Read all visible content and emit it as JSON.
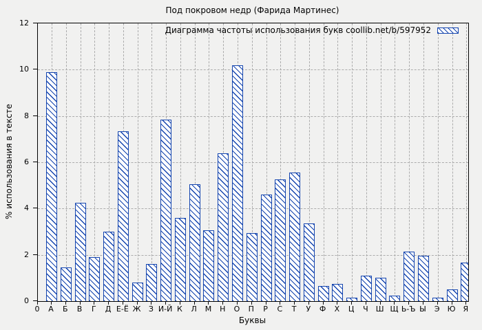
{
  "figure": {
    "background_color": "#f1f1f0",
    "accent_color": "#1243ae",
    "grid_color": "#ababab",
    "axis_color": "#000000",
    "bar_fill_color": "#ffffff",
    "hatch_style": "diagonal-backslash"
  },
  "chart_data": {
    "type": "bar",
    "title": "Под покровом недр (Фарида Мартинес)",
    "legend": "Диаграмма частоты использования букв coollib.net/b/597952",
    "legend_position": "top-right-inside",
    "xlabel": "Буквы",
    "ylabel": "% использования в тексте",
    "origin_label": "0",
    "ylim": [
      0,
      12
    ],
    "yticks": [
      0,
      2,
      4,
      6,
      8,
      10,
      12
    ],
    "grid": true,
    "categories": [
      "А",
      "Б",
      "В",
      "Г",
      "Д",
      "Е-Ё",
      "Ж",
      "З",
      "И-Й",
      "К",
      "Л",
      "М",
      "Н",
      "О",
      "П",
      "Р",
      "С",
      "Т",
      "У",
      "Ф",
      "Х",
      "Ц",
      "Ч",
      "Ш",
      "Щ",
      "Ь-Ъ",
      "Ы",
      "Э",
      "Ю",
      "Я"
    ],
    "values": [
      9.9,
      1.45,
      4.25,
      1.9,
      3.0,
      7.35,
      0.8,
      1.6,
      7.85,
      3.6,
      5.05,
      3.05,
      6.4,
      10.2,
      2.95,
      4.6,
      5.25,
      5.55,
      3.35,
      0.65,
      0.75,
      0.15,
      1.1,
      1.0,
      0.25,
      2.15,
      1.95,
      0.15,
      0.5,
      1.65
    ]
  }
}
